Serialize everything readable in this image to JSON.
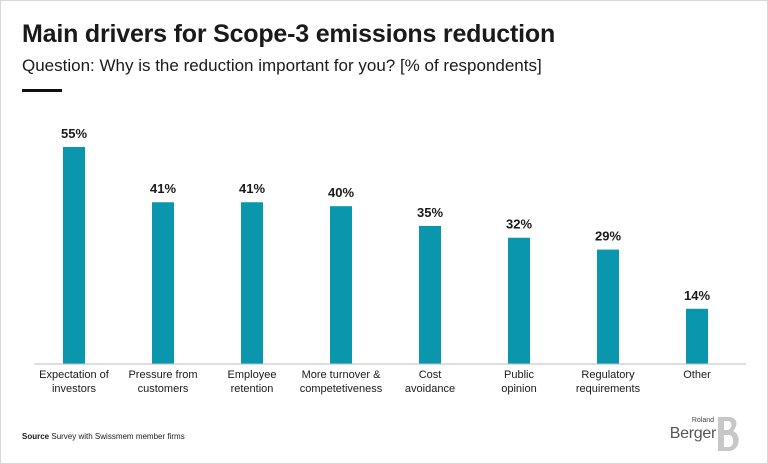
{
  "header": {
    "title": "Main drivers for Scope-3 emissions reduction",
    "subtitle": "Question: Why is the reduction important for you? [% of respondents]"
  },
  "footer": {
    "source_label": "Source",
    "source_text": "Survey with Swissmem member firms",
    "logo_top": "Roland",
    "logo_main": "Berger"
  },
  "colors": {
    "bar": "#0a97ae",
    "axis": "#bdbdbd",
    "text": "#1a1a1a"
  },
  "chart_data": {
    "type": "bar",
    "categories": [
      [
        "Expectation of",
        "investors"
      ],
      [
        "Pressure from",
        "customers"
      ],
      [
        "Employee",
        "retention"
      ],
      [
        "More turnover &",
        "competetiveness"
      ],
      [
        "Cost",
        "avoidance"
      ],
      [
        "Public",
        "opinion"
      ],
      [
        "Regulatory",
        "requirements"
      ],
      [
        "Other"
      ]
    ],
    "values": [
      55,
      41,
      41,
      40,
      35,
      32,
      29,
      14
    ],
    "value_labels": [
      "55%",
      "41%",
      "41%",
      "40%",
      "35%",
      "32%",
      "29%",
      "14%"
    ],
    "ylim": [
      0,
      55
    ],
    "grid": false
  }
}
